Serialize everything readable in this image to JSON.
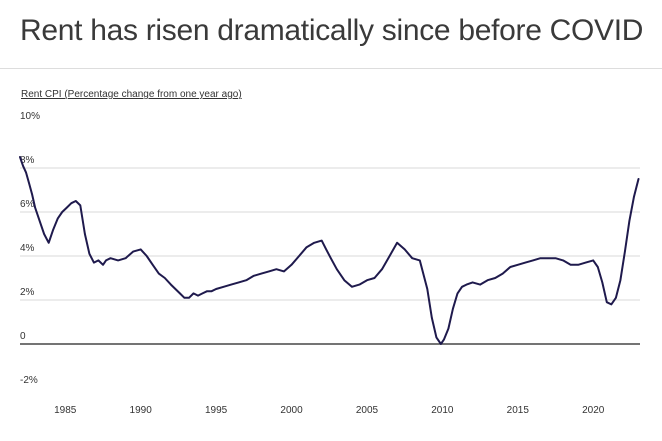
{
  "title": "Rent has risen dramatically since before COVID",
  "subtitle": "Rent CPI (Percentage change from one year ago)",
  "colors": {
    "line": "#1f1a4d",
    "grid": "#d9d9d9",
    "zero": "#222222",
    "text": "#333333"
  },
  "chart_data": {
    "type": "line",
    "title": "Rent has risen dramatically since before COVID",
    "ylabel": "Rent CPI (Percentage change from one year ago)",
    "xlabel": "",
    "xlim": [
      1982,
      2023.1
    ],
    "ylim": [
      -2,
      10
    ],
    "y_ticks": [
      10,
      8,
      6,
      4,
      2,
      0,
      -2
    ],
    "y_tick_labels": [
      "10%",
      "8%",
      "6%",
      "4%",
      "2%",
      "0",
      "-2%"
    ],
    "x_ticks": [
      1985,
      1990,
      1995,
      2000,
      2005,
      2010,
      2015,
      2020
    ],
    "x_tick_labels": [
      "1985",
      "1990",
      "1995",
      "2000",
      "2005",
      "2010",
      "2015",
      "2020"
    ],
    "grid": true,
    "series": [
      {
        "name": "Rent CPI",
        "x": [
          1982.0,
          1982.2,
          1982.4,
          1982.6,
          1982.8,
          1983.0,
          1983.3,
          1983.6,
          1983.9,
          1984.2,
          1984.5,
          1984.8,
          1985.1,
          1985.4,
          1985.7,
          1986.0,
          1986.3,
          1986.6,
          1986.9,
          1987.2,
          1987.5,
          1987.7,
          1988.0,
          1988.5,
          1989.0,
          1989.5,
          1990.0,
          1990.4,
          1990.8,
          1991.2,
          1991.6,
          1992.0,
          1992.3,
          1992.6,
          1992.9,
          1993.2,
          1993.5,
          1993.8,
          1994.1,
          1994.4,
          1994.7,
          1995.0,
          1995.5,
          1996.0,
          1996.5,
          1997.0,
          1997.5,
          1998.0,
          1998.5,
          1999.0,
          1999.5,
          2000.0,
          2000.5,
          2001.0,
          2001.5,
          2002.0,
          2002.3,
          2002.6,
          2003.0,
          2003.5,
          2004.0,
          2004.5,
          2005.0,
          2005.5,
          2006.0,
          2006.5,
          2007.0,
          2007.5,
          2008.0,
          2008.5,
          2009.0,
          2009.3,
          2009.6,
          2009.9,
          2010.1,
          2010.4,
          2010.7,
          2011.0,
          2011.3,
          2011.6,
          2012.0,
          2012.5,
          2013.0,
          2013.5,
          2014.0,
          2014.5,
          2015.0,
          2015.5,
          2016.0,
          2016.5,
          2017.0,
          2017.5,
          2018.0,
          2018.5,
          2019.0,
          2019.5,
          2020.0,
          2020.3,
          2020.6,
          2020.9,
          2021.2,
          2021.5,
          2021.8,
          2022.1,
          2022.4,
          2022.7,
          2023.0
        ],
        "values": [
          8.5,
          8.1,
          7.8,
          7.3,
          6.8,
          6.2,
          5.6,
          5.0,
          4.6,
          5.2,
          5.7,
          6.0,
          6.2,
          6.4,
          6.5,
          6.3,
          5.0,
          4.1,
          3.7,
          3.8,
          3.6,
          3.8,
          3.9,
          3.8,
          3.9,
          4.2,
          4.3,
          4.0,
          3.6,
          3.2,
          3.0,
          2.7,
          2.5,
          2.3,
          2.1,
          2.1,
          2.3,
          2.2,
          2.3,
          2.4,
          2.4,
          2.5,
          2.6,
          2.7,
          2.8,
          2.9,
          3.1,
          3.2,
          3.3,
          3.4,
          3.3,
          3.6,
          4.0,
          4.4,
          4.6,
          4.7,
          4.3,
          3.9,
          3.4,
          2.9,
          2.6,
          2.7,
          2.9,
          3.0,
          3.4,
          4.0,
          4.6,
          4.3,
          3.9,
          3.8,
          2.5,
          1.2,
          0.3,
          0.0,
          0.2,
          0.7,
          1.6,
          2.3,
          2.6,
          2.7,
          2.8,
          2.7,
          2.9,
          3.0,
          3.2,
          3.5,
          3.6,
          3.7,
          3.8,
          3.9,
          3.9,
          3.9,
          3.8,
          3.6,
          3.6,
          3.7,
          3.8,
          3.5,
          2.8,
          1.9,
          1.8,
          2.1,
          2.9,
          4.2,
          5.6,
          6.7,
          7.5
        ]
      }
    ]
  }
}
